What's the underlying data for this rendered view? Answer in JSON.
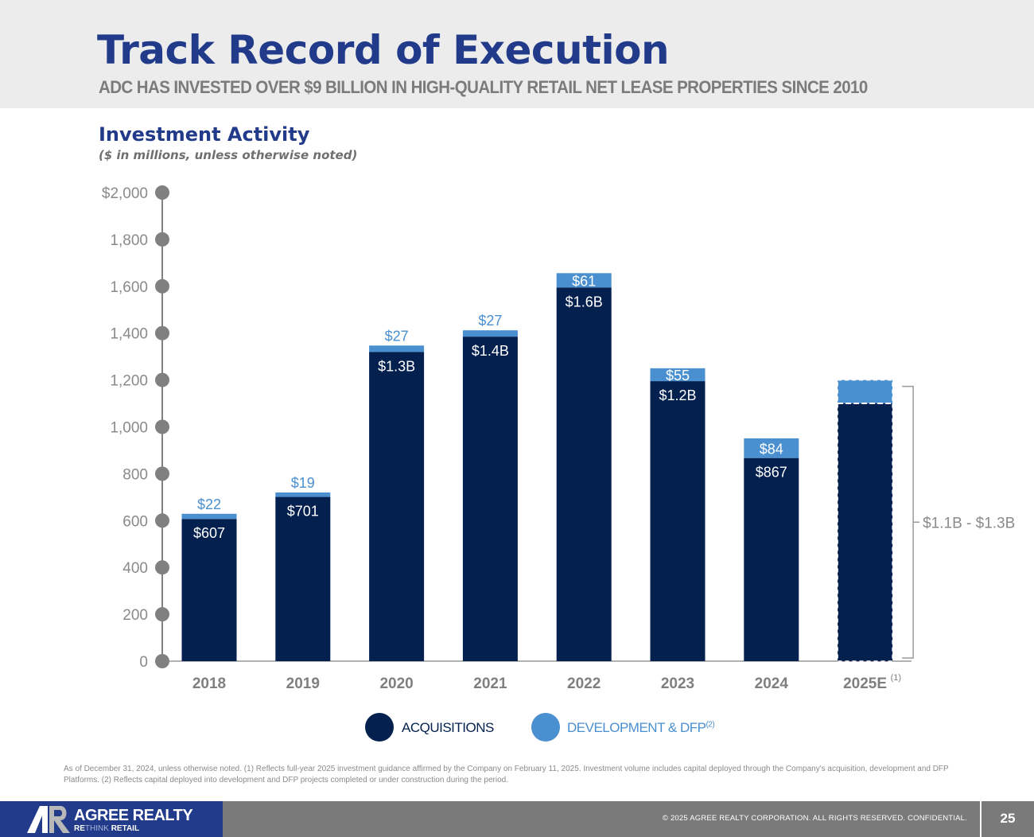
{
  "header": {
    "title": "Track Record of Execution",
    "subtitle": "ADC HAS INVESTED OVER $9 BILLION IN HIGH-QUALITY RETAIL NET LEASE PROPERTIES SINCE 2010"
  },
  "section": {
    "title": "Investment Activity",
    "subtitle": "($ in millions, unless otherwise noted)"
  },
  "colors": {
    "acquisitions": "#03204e",
    "development": "#4a8fcf",
    "axis": "#808080",
    "title_blue": "#213a8a"
  },
  "chart_data": {
    "type": "bar",
    "stacked": true,
    "title": "Investment Activity",
    "subtitle": "($ in millions, unless otherwise noted)",
    "xlabel": "",
    "ylabel": "",
    "ylim": [
      0,
      2000
    ],
    "y_ticks": [
      0,
      200,
      400,
      600,
      800,
      1000,
      1200,
      1400,
      1600,
      1800,
      2000
    ],
    "y_tick_labels": [
      "0",
      "200",
      "400",
      "600",
      "800",
      "1,000",
      "1,200",
      "1,400",
      "1,600",
      "1,800",
      "$2,000"
    ],
    "grid": false,
    "categories": [
      "2018",
      "2019",
      "2020",
      "2021",
      "2022",
      "2023",
      "2024",
      "2025E"
    ],
    "category_superscripts": [
      "",
      "",
      "",
      "",
      "",
      "",
      "",
      "(1)"
    ],
    "series": [
      {
        "name": "ACQUISITIONS",
        "values": [
          607,
          701,
          1320,
          1385,
          1595,
          1195,
          867,
          1100
        ],
        "labels": [
          "$607",
          "$701",
          "$1.3B",
          "$1.4B",
          "$1.6B",
          "$1.2B",
          "$867",
          ""
        ]
      },
      {
        "name": "DEVELOPMENT & DFP",
        "superscript": "(2)",
        "values": [
          22,
          19,
          27,
          27,
          61,
          55,
          84,
          100
        ],
        "labels": [
          "$22",
          "$19",
          "$27",
          "$27",
          "$61",
          "$55",
          "$84",
          ""
        ]
      }
    ],
    "estimate_category": "2025E",
    "estimate_range_label": "$1.1B - $1.3B",
    "legend_position": "bottom-center"
  },
  "legend": [
    {
      "label": "ACQUISITIONS",
      "sup": ""
    },
    {
      "label": "DEVELOPMENT & DFP",
      "sup": "(2)"
    }
  ],
  "footnote": "As of December 31, 2024, unless otherwise noted. (1) Reflects full-year 2025 investment guidance affirmed by the Company on February 11, 2025. Investment volume includes capital deployed through the Company's acquisition, development and DFP Platforms. (2) Reflects capital deployed into development and DFP projects completed or under construction during the period.",
  "footer": {
    "brand_name": "AGREE REALTY",
    "tagline_light": "RETHINK",
    "tagline_bold": "RETAIL",
    "tagline_prefix": "RE",
    "copyright": "© 2025 AGREE REALTY CORPORATION. ALL RIGHTS RESERVED. CONFIDENTIAL.",
    "page_number": "25"
  }
}
